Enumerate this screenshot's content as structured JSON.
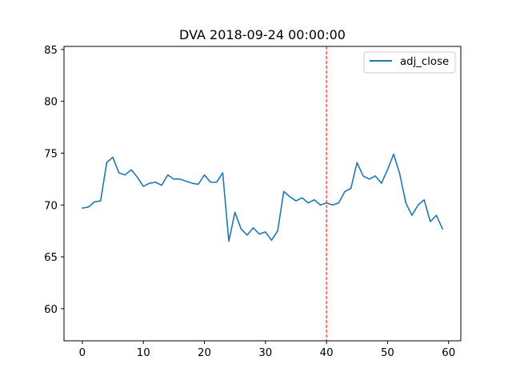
{
  "chart_data": {
    "type": "line",
    "title": "DVA 2018-09-24 00:00:00",
    "xlabel": "",
    "ylabel": "",
    "xlim": [
      -3,
      62
    ],
    "ylim": [
      56.9,
      85.3
    ],
    "x_ticks": [
      0,
      10,
      20,
      30,
      40,
      50,
      60
    ],
    "y_ticks": [
      60,
      65,
      70,
      75,
      80,
      85
    ],
    "x_tick_labels": [
      "0",
      "10",
      "20",
      "30",
      "40",
      "50",
      "60"
    ],
    "y_tick_labels": [
      "60",
      "65",
      "70",
      "75",
      "80",
      "85"
    ],
    "grid": false,
    "legend_position": "top-right",
    "series": [
      {
        "name": "adj_close",
        "color": "#1f77b4",
        "x": [
          0,
          1,
          2,
          3,
          4,
          5,
          6,
          7,
          8,
          9,
          10,
          11,
          12,
          13,
          14,
          15,
          16,
          17,
          18,
          19,
          20,
          21,
          22,
          23,
          24,
          25,
          26,
          27,
          28,
          29,
          30,
          31,
          32,
          33,
          34,
          35,
          36,
          37,
          38,
          39,
          40,
          41,
          42,
          43,
          44,
          45,
          46,
          47,
          48,
          49,
          50,
          51,
          52,
          53,
          54,
          55,
          56,
          57,
          58,
          59
        ],
        "values": [
          69.7,
          69.8,
          70.3,
          70.4,
          74.1,
          74.6,
          73.1,
          72.9,
          73.4,
          72.7,
          71.8,
          72.1,
          72.2,
          71.9,
          72.9,
          72.5,
          72.5,
          72.3,
          72.1,
          72.0,
          72.9,
          72.2,
          72.2,
          73.1,
          66.5,
          69.3,
          67.7,
          67.1,
          67.8,
          67.2,
          67.4,
          66.6,
          67.5,
          71.3,
          70.8,
          70.4,
          70.7,
          70.2,
          70.5,
          70.0,
          70.2,
          70.0,
          70.2,
          71.3,
          71.6,
          74.1,
          72.8,
          72.5,
          72.8,
          72.1,
          73.4,
          74.9,
          73.0,
          70.2,
          69.0,
          70.0,
          70.5,
          68.4,
          69.0,
          67.7
        ]
      }
    ],
    "annotations": [
      {
        "type": "vline",
        "x": 40,
        "color": "#ff0000",
        "style": "dashed"
      }
    ]
  }
}
